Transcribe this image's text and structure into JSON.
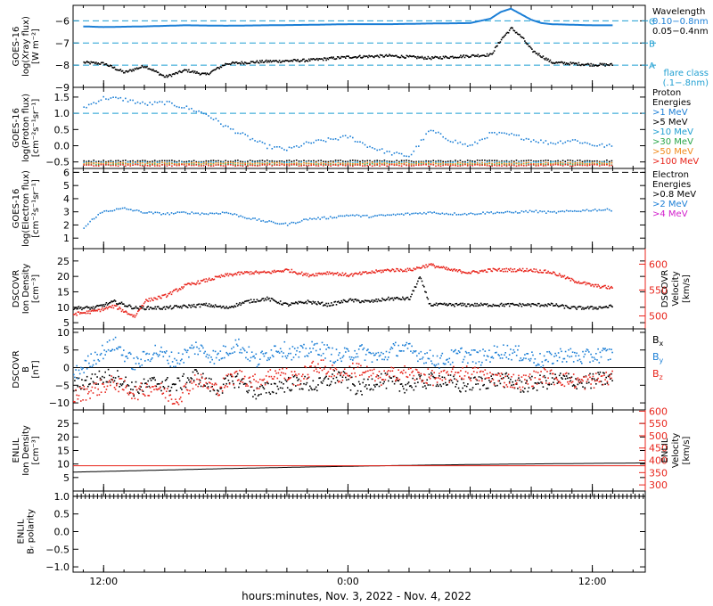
{
  "colors": {
    "black": "#000000",
    "blue": "#1c7fd6",
    "red": "#e8251c",
    "green": "#29a64a",
    "orange": "#f08a1c",
    "magenta": "#d21ccc",
    "cyan": "#1f9fd2"
  },
  "x_axis": {
    "label": "hours:minutes, Nov.  3, 2022 - Nov.  4, 2022",
    "tick_labels": [
      "12:00",
      "0:00",
      "12:00"
    ],
    "tick_hours": [
      12,
      24,
      36
    ],
    "range_hours": [
      10.5,
      38.6
    ]
  },
  "chart_data": [
    {
      "id": "xray",
      "type": "line",
      "ylabel_lines": [
        "GOES-16",
        "log(Xray flux)",
        "[W m⁻²]"
      ],
      "ylim": [
        -9.0,
        -5.3
      ],
      "y_ticks": [
        -6,
        -7,
        -8,
        -9
      ],
      "y_tick_labels": [
        "−6",
        "−7",
        "−8",
        "−9"
      ],
      "legend_title": "Wavelength",
      "flare_levels": [
        {
          "value": -6,
          "label": "C"
        },
        {
          "value": -7,
          "label": "B"
        },
        {
          "value": -8,
          "label": "A"
        }
      ],
      "flare_class_label": [
        "flare class",
        "(.1−.8nm)"
      ],
      "series": [
        {
          "name": "0.10−0.8nm",
          "color": "blue",
          "x": [
            11.0,
            12.0,
            14.0,
            16.0,
            18.0,
            20.0,
            22.0,
            24.0,
            26.0,
            28.0,
            30.0,
            31.0,
            31.5,
            32.0,
            32.5,
            33.0,
            33.5,
            34.0,
            36.0,
            37.0
          ],
          "y": [
            -6.25,
            -6.28,
            -6.25,
            -6.2,
            -6.22,
            -6.2,
            -6.18,
            -6.15,
            -6.15,
            -6.12,
            -6.1,
            -5.9,
            -5.6,
            -5.45,
            -5.7,
            -5.95,
            -6.1,
            -6.15,
            -6.2,
            -6.2
          ]
        },
        {
          "name": "0.05−0.4nm",
          "color": "black",
          "x": [
            11.0,
            12.0,
            13.0,
            14.0,
            15.0,
            16.0,
            17.0,
            18.0,
            20.0,
            22.0,
            24.0,
            26.0,
            28.0,
            30.0,
            31.0,
            31.5,
            32.0,
            32.5,
            33.0,
            34.0,
            35.0,
            36.0,
            37.0
          ],
          "y": [
            -7.85,
            -7.9,
            -8.3,
            -8.0,
            -8.5,
            -8.2,
            -8.4,
            -7.9,
            -7.8,
            -7.75,
            -7.6,
            -7.55,
            -7.65,
            -7.55,
            -7.5,
            -6.8,
            -6.3,
            -6.7,
            -7.3,
            -7.85,
            -7.9,
            -7.95,
            -7.95
          ]
        }
      ]
    },
    {
      "id": "proton",
      "type": "scatter",
      "ylabel_lines": [
        "GOES-16",
        "log(Proton flux)",
        "[cm⁻²s⁻¹sr⁻¹]"
      ],
      "ylim": [
        -0.7,
        1.8
      ],
      "y_ticks": [
        1.5,
        1.0,
        0.5,
        0.0,
        -0.5
      ],
      "y_tick_labels": [
        "1.5",
        "1.0",
        "0.5",
        "0.0",
        "−0.5"
      ],
      "threshold": 1.0,
      "legend_title": [
        "Proton",
        "Energies"
      ],
      "series": [
        {
          "name": ">1 MeV",
          "color": "blue",
          "x": [
            11.0,
            12.0,
            13.0,
            14.0,
            15.0,
            16.0,
            17.0,
            18.0,
            19.0,
            20.0,
            21.0,
            22.0,
            23.0,
            24.0,
            25.0,
            26.0,
            27.0,
            28.0,
            29.0,
            30.0,
            31.0,
            32.0,
            33.0,
            34.0,
            35.0,
            36.0,
            37.0
          ],
          "y": [
            1.2,
            1.5,
            1.45,
            1.3,
            1.35,
            1.2,
            1.0,
            0.6,
            0.3,
            0.0,
            -0.1,
            0.1,
            0.2,
            0.3,
            0.0,
            -0.2,
            -0.3,
            0.5,
            0.2,
            0.0,
            0.4,
            0.35,
            0.2,
            0.1,
            0.2,
            0.05,
            0.0
          ]
        },
        {
          "name": ">5 MeV",
          "color": "black",
          "x": [
            11.0,
            37.0
          ],
          "y": [
            -0.45,
            -0.45
          ]
        },
        {
          "name": ">10 MeV",
          "color": "cyan",
          "x": [
            11.0,
            37.0
          ],
          "y": [
            -0.5,
            -0.5
          ]
        },
        {
          "name": ">30 MeV",
          "color": "green",
          "x": [
            11.0,
            37.0
          ],
          "y": [
            -0.55,
            -0.55
          ]
        },
        {
          "name": ">50 MeV",
          "color": "orange",
          "x": [
            11.0,
            37.0
          ],
          "y": [
            -0.52,
            -0.52
          ]
        },
        {
          "name": ">100 MeV",
          "color": "red",
          "x": [
            11.0,
            37.0
          ],
          "y": [
            -0.58,
            -0.58
          ]
        }
      ]
    },
    {
      "id": "electron",
      "type": "scatter",
      "ylabel_lines": [
        "GOES-16",
        "log(Electron flux)",
        "[cm⁻²s⁻¹sr⁻¹]"
      ],
      "ylim": [
        0.2,
        6.3
      ],
      "y_ticks": [
        6,
        5,
        4,
        3,
        2,
        1
      ],
      "y_tick_labels": [
        "6",
        "5",
        "4",
        "3",
        "2",
        "1"
      ],
      "threshold": 6.0,
      "legend_title": [
        "Electron",
        "Energies"
      ],
      "series": [
        {
          "name": ">0.8 MeV",
          "color": "black",
          "x": [],
          "y": []
        },
        {
          "name": ">2 MeV",
          "color": "blue",
          "x": [
            11.0,
            11.5,
            12.0,
            13.0,
            14.0,
            15.0,
            16.0,
            17.0,
            18.0,
            19.0,
            20.0,
            21.0,
            22.0,
            23.0,
            24.0,
            25.0,
            26.0,
            27.0,
            28.0,
            29.0,
            30.0,
            31.0,
            32.0,
            33.0,
            34.0,
            35.0,
            36.0,
            37.0
          ],
          "y": [
            1.8,
            2.6,
            3.1,
            3.3,
            3.0,
            2.9,
            3.0,
            2.9,
            3.0,
            2.6,
            2.3,
            2.1,
            2.5,
            2.6,
            2.8,
            2.7,
            2.8,
            2.9,
            3.0,
            2.9,
            2.9,
            3.0,
            3.0,
            3.1,
            3.0,
            3.1,
            3.2,
            3.2
          ]
        },
        {
          "name": ">4 MeV",
          "color": "magenta",
          "x": [],
          "y": []
        }
      ]
    },
    {
      "id": "dscovr-density",
      "type": "scatter",
      "ylabel_lines": [
        "DSCOVR",
        "Ion Density",
        "[cm⁻³]"
      ],
      "ylim": [
        3,
        29
      ],
      "y_ticks": [
        25,
        20,
        15,
        10,
        5
      ],
      "y_tick_labels": [
        "25",
        "20",
        "15",
        "10",
        "5"
      ],
      "right_ylabel_lines": [
        "DSCOVR",
        "Velocity",
        "[km/s]"
      ],
      "right_ylim": [
        475,
        630
      ],
      "right_y_ticks": [
        600,
        550,
        500
      ],
      "right_y_tick_labels": [
        "600",
        "550",
        "500"
      ],
      "series": [
        {
          "name": "Ion Density",
          "color": "black",
          "axis": "left",
          "x": [
            10.5,
            11.5,
            12.5,
            13.5,
            14.0,
            15.0,
            16.0,
            17.0,
            18.0,
            19.0,
            20.0,
            21.0,
            22.0,
            23.0,
            24.0,
            25.0,
            26.0,
            27.0,
            27.5,
            28.0,
            29.0,
            30.0,
            31.0,
            32.0,
            33.0,
            34.0,
            35.0,
            36.0,
            37.0
          ],
          "y": [
            10,
            10,
            12,
            10,
            10,
            10,
            10.5,
            11,
            10,
            12,
            13,
            11,
            12,
            11,
            12.5,
            12,
            13,
            13,
            20,
            11,
            11,
            11,
            11,
            11,
            11,
            11,
            10,
            10,
            10.5
          ]
        },
        {
          "name": "Velocity",
          "color": "red",
          "axis": "right",
          "x": [
            10.5,
            11.5,
            12.5,
            13.5,
            14.0,
            15.0,
            16.0,
            17.0,
            18.0,
            19.0,
            20.0,
            21.0,
            22.0,
            23.0,
            24.0,
            25.0,
            26.0,
            27.0,
            28.0,
            29.0,
            30.0,
            31.0,
            32.0,
            33.0,
            34.0,
            35.0,
            36.0,
            37.0
          ],
          "y": [
            505,
            510,
            520,
            500,
            530,
            540,
            560,
            570,
            580,
            585,
            585,
            590,
            580,
            585,
            580,
            585,
            590,
            590,
            600,
            590,
            585,
            590,
            590,
            590,
            585,
            570,
            560,
            555
          ]
        }
      ]
    },
    {
      "id": "dscovr-field",
      "type": "scatter",
      "ylabel_lines": [
        "DSCOVR",
        "B",
        "[nT]"
      ],
      "ylim": [
        -12,
        11
      ],
      "y_ticks": [
        10,
        5,
        0,
        -5,
        -10
      ],
      "y_tick_labels": [
        "10",
        "5",
        "0",
        "−5",
        "−10"
      ],
      "zero_line": 0,
      "series": [
        {
          "name": "Bx",
          "color": "black",
          "x": [
            10.5,
            11.5,
            12.5,
            13.5,
            14.5,
            15.5,
            16.5,
            17.5,
            18.5,
            19.5,
            20.5,
            21.5,
            22.5,
            23.5,
            24.5,
            25.5,
            26.5,
            27.5,
            28.5,
            29.5,
            30.5,
            31.5,
            32.5,
            33.5,
            34.5,
            35.5,
            36.5,
            37.0
          ],
          "y": [
            -5,
            -3,
            -2,
            -6,
            -4,
            -5,
            -2,
            -6,
            -3,
            -7,
            -5,
            -4,
            -5,
            -2,
            -6,
            -3,
            -5,
            -4,
            -3,
            -5,
            -4,
            -3,
            -5,
            -4,
            -3,
            -4,
            -3,
            -3
          ]
        },
        {
          "name": "By",
          "color": "blue",
          "x": [
            10.5,
            11.5,
            12.5,
            13.5,
            14.5,
            15.5,
            16.5,
            17.5,
            18.5,
            19.5,
            20.5,
            21.5,
            22.5,
            23.5,
            24.5,
            25.5,
            26.5,
            27.5,
            28.5,
            29.5,
            30.5,
            31.5,
            32.5,
            33.5,
            34.5,
            35.5,
            36.5,
            37.0
          ],
          "y": [
            -2,
            3,
            7,
            1,
            5,
            2,
            6,
            3,
            7,
            2,
            6,
            4,
            6,
            3,
            5,
            3,
            6,
            4,
            2,
            4,
            3,
            5,
            4,
            2,
            4,
            3,
            4,
            4
          ]
        },
        {
          "name": "Bz",
          "color": "red",
          "x": [
            10.5,
            11.5,
            12.5,
            13.5,
            14.5,
            15.5,
            16.5,
            17.5,
            18.5,
            19.5,
            20.5,
            21.5,
            22.5,
            23.5,
            24.5,
            25.5,
            26.5,
            27.5,
            28.5,
            29.5,
            30.5,
            31.5,
            32.5,
            33.5,
            34.5,
            35.5,
            36.5,
            37.0
          ],
          "y": [
            -8,
            -6,
            -4,
            -7,
            -5,
            -9,
            -3,
            -6,
            -2,
            -4,
            -1,
            -3,
            1,
            -2,
            0,
            -3,
            -1,
            -2,
            -3,
            -1,
            -2,
            -3,
            -4,
            -2,
            -3,
            -4,
            -3,
            -3
          ]
        }
      ]
    },
    {
      "id": "enlil-density",
      "type": "line",
      "ylabel_lines": [
        "ENLIL",
        "Ion Density",
        "[cm⁻³]"
      ],
      "ylim": [
        0,
        30
      ],
      "y_ticks": [
        25,
        20,
        15,
        10,
        5
      ],
      "y_tick_labels": [
        "25",
        "20",
        "15",
        "10",
        "5"
      ],
      "right_ylabel_lines": [
        "ENLIL",
        "Velocity",
        "[km/s]"
      ],
      "right_ylim": [
        275,
        605
      ],
      "right_y_ticks": [
        600,
        550,
        500,
        450,
        400,
        350,
        300
      ],
      "right_y_tick_labels": [
        "600",
        "550",
        "500",
        "450",
        "400",
        "350",
        "300"
      ],
      "series": [
        {
          "name": "Ion Density",
          "color": "black",
          "axis": "left",
          "x": [
            10.5,
            14.0,
            18.0,
            22.0,
            26.0,
            30.0,
            34.0,
            38.6
          ],
          "y": [
            7.0,
            7.6,
            8.3,
            8.9,
            9.4,
            9.8,
            10.1,
            10.4
          ]
        },
        {
          "name": "Velocity",
          "color": "red",
          "axis": "right",
          "x": [
            10.5,
            38.6
          ],
          "y": [
            378,
            378
          ]
        }
      ]
    },
    {
      "id": "enlil-polarity",
      "type": "line",
      "ylabel_lines": [
        "ENLIL",
        "Bᵣ polarity"
      ],
      "ylim": [
        -1.15,
        1.15
      ],
      "y_ticks": [
        1.0,
        0.5,
        0.0,
        -0.5,
        -1.0
      ],
      "y_tick_labels": [
        "1.0",
        "0.5",
        "0.0",
        "−0.5",
        "−1.0"
      ],
      "series": [
        {
          "name": "Br polarity",
          "color": "black",
          "x": [
            10.5,
            38.6
          ],
          "y": [
            1.0,
            1.0
          ]
        }
      ]
    }
  ],
  "legends": {
    "xray": [
      {
        "text": "Wavelength",
        "color": "black"
      },
      {
        "text": "0.10−0.8nm",
        "color": "blue"
      },
      {
        "text": "0.05−0.4nm",
        "color": "black"
      }
    ],
    "proton": [
      {
        "text": "Proton",
        "color": "black"
      },
      {
        "text": "Energies",
        "color": "black"
      },
      {
        "text": ">1 MeV",
        "color": "blue"
      },
      {
        "text": ">5 MeV",
        "color": "black"
      },
      {
        "text": ">10 MeV",
        "color": "cyan"
      },
      {
        "text": ">30 MeV",
        "color": "green"
      },
      {
        "text": ">50 MeV",
        "color": "orange"
      },
      {
        "text": ">100 MeV",
        "color": "red"
      }
    ],
    "electron": [
      {
        "text": "Electron",
        "color": "black"
      },
      {
        "text": "Energies",
        "color": "black"
      },
      {
        "text": ">0.8 MeV",
        "color": "black"
      },
      {
        "text": ">2 MeV",
        "color": "blue"
      },
      {
        "text": ">4 MeV",
        "color": "magenta"
      }
    ],
    "field": [
      {
        "text": "Bx",
        "color": "black",
        "main": "B",
        "sub": "x"
      },
      {
        "text": "By",
        "color": "blue",
        "main": "B",
        "sub": "y"
      },
      {
        "text": "Bz",
        "color": "red",
        "main": "B",
        "sub": "z"
      }
    ]
  }
}
